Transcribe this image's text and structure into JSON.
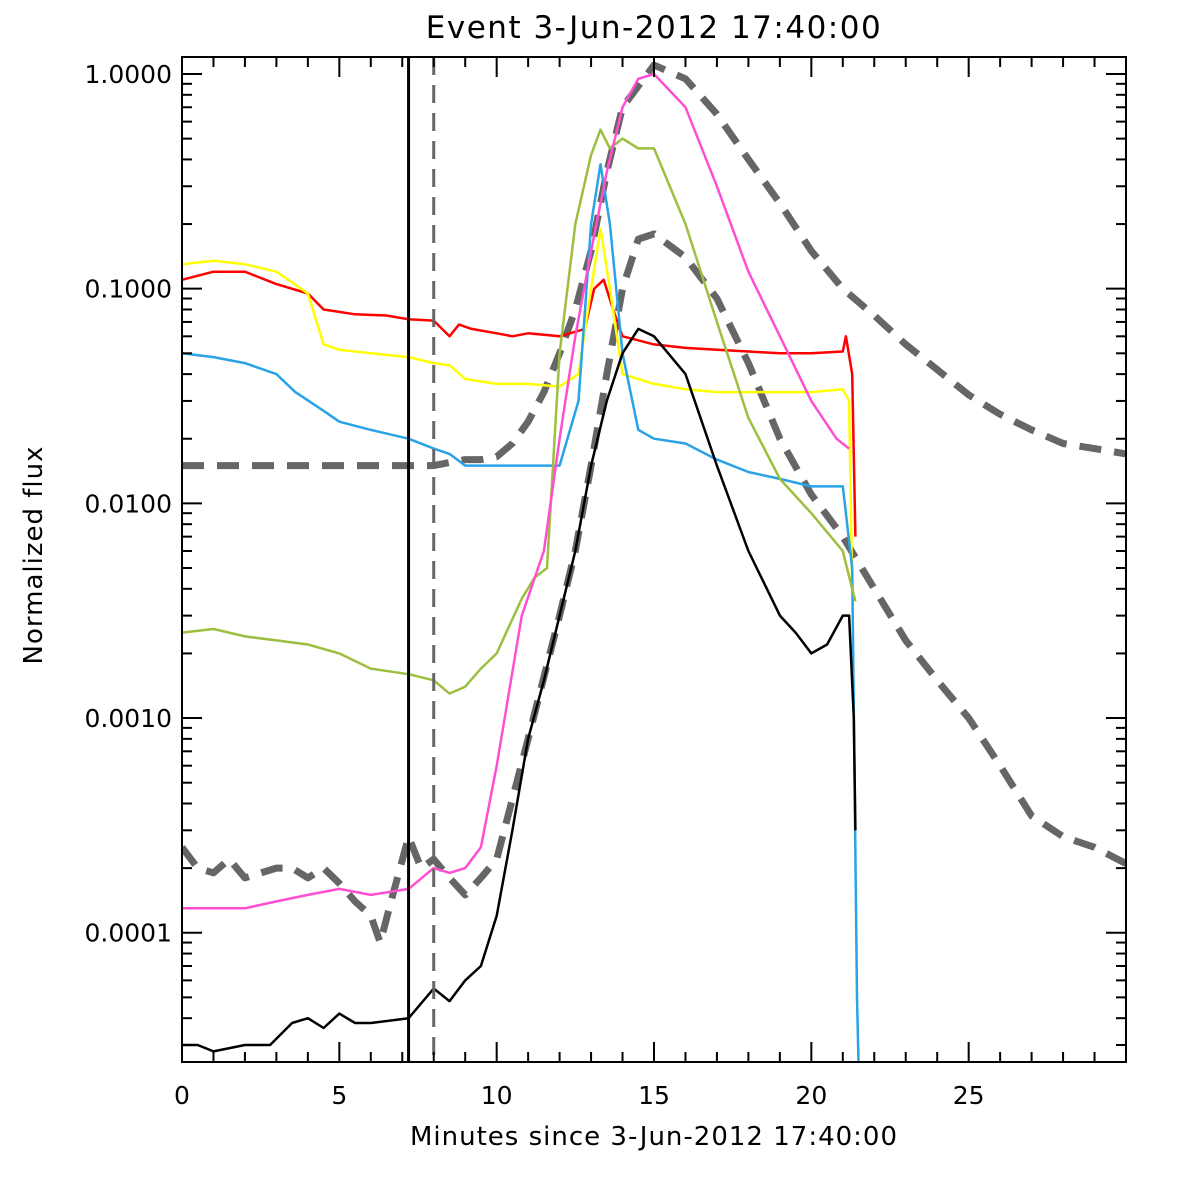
{
  "chart_data": {
    "type": "line",
    "title": "Event 3-Jun-2012 17:40:00",
    "xlabel": "Minutes since 3-Jun-2012 17:40:00",
    "ylabel": "Normalized flux",
    "xlim": [
      0,
      30
    ],
    "ylim": [
      2.5e-05,
      1.2
    ],
    "yscale": "log",
    "x_ticks": [
      0,
      5,
      10,
      15,
      20,
      25
    ],
    "x_tick_labels": [
      "0",
      "5",
      "10",
      "15",
      "20",
      "25"
    ],
    "y_ticks": [
      0.0001,
      0.001,
      0.01,
      0.1,
      1.0
    ],
    "y_tick_labels": [
      "0.0001",
      "0.0010",
      "0.0100",
      "0.1000",
      "1.0000"
    ],
    "vertical_lines": [
      {
        "x": 7.2,
        "style": "solid",
        "color": "#000000"
      },
      {
        "x": 8.0,
        "style": "dashed",
        "color": "#666666"
      }
    ],
    "series": [
      {
        "color": "#ff0000",
        "style": "solid",
        "x": [
          0,
          1,
          2,
          3,
          4,
          4.5,
          5.5,
          6.5,
          7.2,
          8,
          8.5,
          8.8,
          9.2,
          10,
          10.5,
          11,
          12,
          12.8,
          13.1,
          13.4,
          13.7,
          14,
          15,
          16,
          17,
          18,
          19,
          20,
          21,
          21.1,
          21.3,
          21.4
        ],
        "y": [
          0.11,
          0.12,
          0.12,
          0.105,
          0.095,
          0.08,
          0.076,
          0.075,
          0.072,
          0.071,
          0.06,
          0.068,
          0.065,
          0.062,
          0.06,
          0.062,
          0.06,
          0.065,
          0.1,
          0.11,
          0.08,
          0.06,
          0.055,
          0.053,
          0.052,
          0.051,
          0.05,
          0.05,
          0.051,
          0.06,
          0.04,
          0.007
        ]
      },
      {
        "color": "#ffff00",
        "style": "solid",
        "x": [
          0,
          1,
          2,
          3,
          4,
          4.5,
          5,
          6,
          7.2,
          8,
          8.5,
          9,
          10,
          11,
          12,
          12.6,
          13,
          13.3,
          13.6,
          14,
          15,
          16,
          17,
          18,
          19,
          20,
          21,
          21.2,
          21.3
        ],
        "y": [
          0.13,
          0.135,
          0.13,
          0.12,
          0.095,
          0.055,
          0.052,
          0.05,
          0.048,
          0.045,
          0.044,
          0.038,
          0.036,
          0.036,
          0.035,
          0.04,
          0.1,
          0.19,
          0.1,
          0.04,
          0.036,
          0.034,
          0.033,
          0.033,
          0.033,
          0.033,
          0.034,
          0.03,
          0.004
        ]
      },
      {
        "color": "#29a3e6",
        "style": "solid",
        "x": [
          0,
          1,
          2,
          3,
          3.6,
          4.5,
          5,
          6,
          7.2,
          8,
          8.5,
          9,
          10,
          11,
          12,
          12.6,
          13,
          13.3,
          13.6,
          14,
          14.5,
          15,
          16,
          17,
          18,
          19,
          20,
          21,
          21.3,
          21.45,
          21.5
        ],
        "y": [
          0.05,
          0.048,
          0.045,
          0.04,
          0.033,
          0.027,
          0.024,
          0.022,
          0.02,
          0.018,
          0.017,
          0.015,
          0.015,
          0.015,
          0.015,
          0.03,
          0.2,
          0.38,
          0.2,
          0.05,
          0.022,
          0.02,
          0.019,
          0.016,
          0.014,
          0.013,
          0.012,
          0.012,
          0.005,
          5e-05,
          2.5e-05
        ]
      },
      {
        "color": "#9dbf3f",
        "style": "solid",
        "x": [
          0,
          1,
          2,
          3,
          4,
          5,
          6,
          7.2,
          8,
          8.5,
          9,
          9.5,
          10,
          10.8,
          11.2,
          11.6,
          12,
          12.5,
          13,
          13.3,
          13.6,
          14,
          14.5,
          15,
          16,
          17,
          18,
          19,
          20,
          21,
          21.3,
          21.4
        ],
        "y": [
          0.0025,
          0.0026,
          0.0024,
          0.0023,
          0.0022,
          0.002,
          0.0017,
          0.0016,
          0.0015,
          0.0013,
          0.0014,
          0.0017,
          0.002,
          0.0036,
          0.0045,
          0.005,
          0.05,
          0.2,
          0.42,
          0.55,
          0.45,
          0.5,
          0.45,
          0.45,
          0.2,
          0.07,
          0.025,
          0.013,
          0.009,
          0.006,
          0.004,
          0.0035
        ]
      },
      {
        "color": "#ff4fd0",
        "style": "solid",
        "x": [
          0,
          1,
          2,
          3,
          4,
          5,
          6,
          7.2,
          8,
          8.5,
          9,
          9.5,
          10,
          10.8,
          11.5,
          12,
          12.5,
          13,
          13.5,
          14,
          14.5,
          15,
          16,
          17,
          18,
          19,
          20,
          20.8,
          21.2
        ],
        "y": [
          0.00013,
          0.00013,
          0.00013,
          0.00014,
          0.00015,
          0.00016,
          0.00015,
          0.00016,
          0.0002,
          0.00019,
          0.0002,
          0.00025,
          0.0006,
          0.003,
          0.006,
          0.02,
          0.06,
          0.15,
          0.35,
          0.7,
          0.95,
          1.0,
          0.7,
          0.3,
          0.12,
          0.06,
          0.03,
          0.02,
          0.018
        ]
      },
      {
        "color": "#000000",
        "style": "solid",
        "x": [
          0,
          0.5,
          1,
          2,
          2.8,
          3.5,
          4,
          4.5,
          5,
          5.5,
          6,
          7.2,
          8,
          8.5,
          9,
          9.5,
          10,
          10.5,
          11,
          11.5,
          12,
          12.5,
          13,
          13.5,
          14,
          14.5,
          15,
          16,
          17,
          18,
          19,
          19.5,
          20,
          20.5,
          21,
          21.2,
          21.35,
          21.4
        ],
        "y": [
          3e-05,
          3e-05,
          2.8e-05,
          3e-05,
          3e-05,
          3.8e-05,
          4e-05,
          3.6e-05,
          4.2e-05,
          3.8e-05,
          3.8e-05,
          4e-05,
          5.5e-05,
          4.8e-05,
          6e-05,
          7e-05,
          0.00012,
          0.0003,
          0.0008,
          0.0015,
          0.003,
          0.006,
          0.015,
          0.03,
          0.05,
          0.065,
          0.06,
          0.04,
          0.015,
          0.006,
          0.003,
          0.0025,
          0.002,
          0.0022,
          0.003,
          0.003,
          0.001,
          0.0003
        ]
      },
      {
        "color": "#666666",
        "style": "dashed",
        "width": "thick",
        "x": [
          0,
          2,
          4,
          6,
          7.2,
          8,
          9,
          9.5,
          10,
          10.5,
          11,
          11.5,
          12,
          12.5,
          13,
          13.5,
          14,
          15,
          16,
          17,
          18,
          19,
          20,
          21,
          22,
          23,
          24,
          25,
          26,
          27,
          28,
          29,
          30
        ],
        "y": [
          0.015,
          0.015,
          0.015,
          0.015,
          0.015,
          0.015,
          0.016,
          0.016,
          0.0165,
          0.019,
          0.024,
          0.033,
          0.05,
          0.08,
          0.15,
          0.35,
          0.7,
          1.1,
          0.95,
          0.65,
          0.4,
          0.25,
          0.15,
          0.1,
          0.075,
          0.055,
          0.042,
          0.032,
          0.026,
          0.022,
          0.019,
          0.018,
          0.017
        ]
      },
      {
        "color": "#666666",
        "style": "dashed",
        "width": "thick",
        "x": [
          0,
          0.5,
          1,
          1.5,
          2,
          2.5,
          3,
          3.5,
          4,
          4.5,
          5,
          5.5,
          6,
          6.3,
          6.7,
          7.2,
          7.6,
          8,
          8.5,
          9,
          9.5,
          10,
          11,
          12,
          12.5,
          13,
          13.5,
          14,
          14.5,
          15,
          16,
          17,
          18,
          19,
          20,
          21,
          22,
          23,
          24,
          25,
          26,
          27,
          28,
          29,
          30
        ],
        "y": [
          0.00025,
          0.0002,
          0.00019,
          0.00022,
          0.00018,
          0.00019,
          0.0002,
          0.0002,
          0.00018,
          0.0002,
          0.00017,
          0.00014,
          0.00012,
          9e-05,
          0.00015,
          0.00028,
          0.0002,
          0.00022,
          0.00018,
          0.00015,
          0.00018,
          0.00022,
          0.0008,
          0.003,
          0.006,
          0.015,
          0.04,
          0.1,
          0.17,
          0.18,
          0.14,
          0.09,
          0.045,
          0.02,
          0.011,
          0.007,
          0.004,
          0.0023,
          0.0015,
          0.001,
          0.0006,
          0.00035,
          0.00028,
          0.00025,
          0.00021
        ]
      }
    ]
  }
}
